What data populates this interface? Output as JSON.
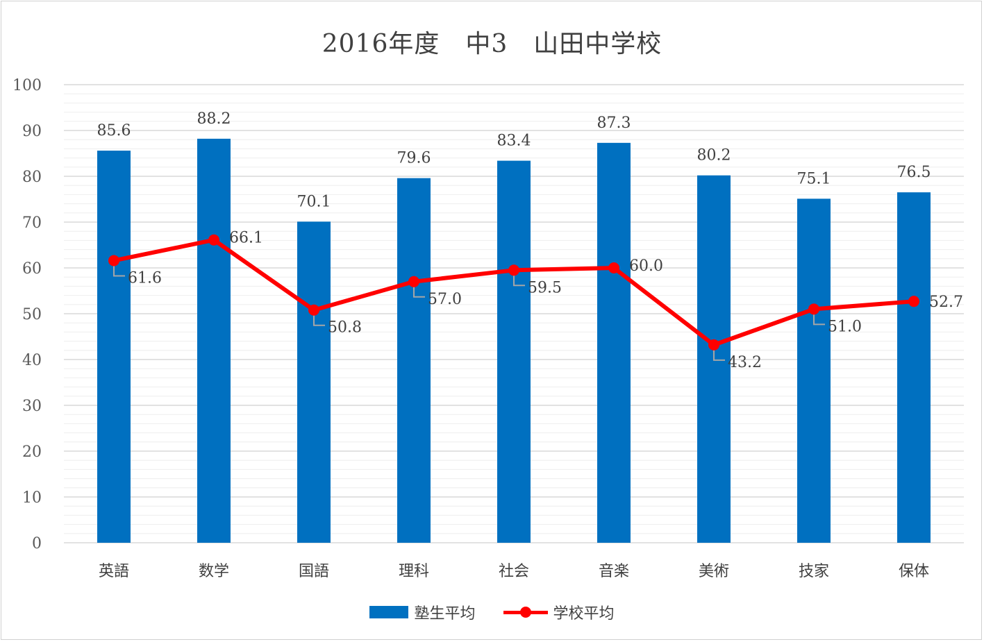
{
  "chart_data": {
    "type": "bar",
    "title": "2016年度　中3　山田中学校",
    "categories": [
      "英語",
      "数学",
      "国語",
      "理科",
      "社会",
      "音楽",
      "美術",
      "技家",
      "保体"
    ],
    "series": [
      {
        "name": "塾生平均",
        "type": "bar",
        "color": "#0070c0",
        "values": [
          85.6,
          88.2,
          70.1,
          79.6,
          83.4,
          87.3,
          80.2,
          75.1,
          76.5
        ]
      },
      {
        "name": "学校平均",
        "type": "line",
        "color": "#ff0000",
        "values": [
          61.6,
          66.1,
          50.8,
          57.0,
          59.5,
          60.0,
          43.2,
          51.0,
          52.7
        ]
      }
    ],
    "ylim": [
      0,
      100
    ],
    "yticks": [
      0,
      10,
      20,
      30,
      40,
      50,
      60,
      70,
      80,
      90,
      100
    ],
    "grid": true,
    "legend_position": "bottom"
  }
}
